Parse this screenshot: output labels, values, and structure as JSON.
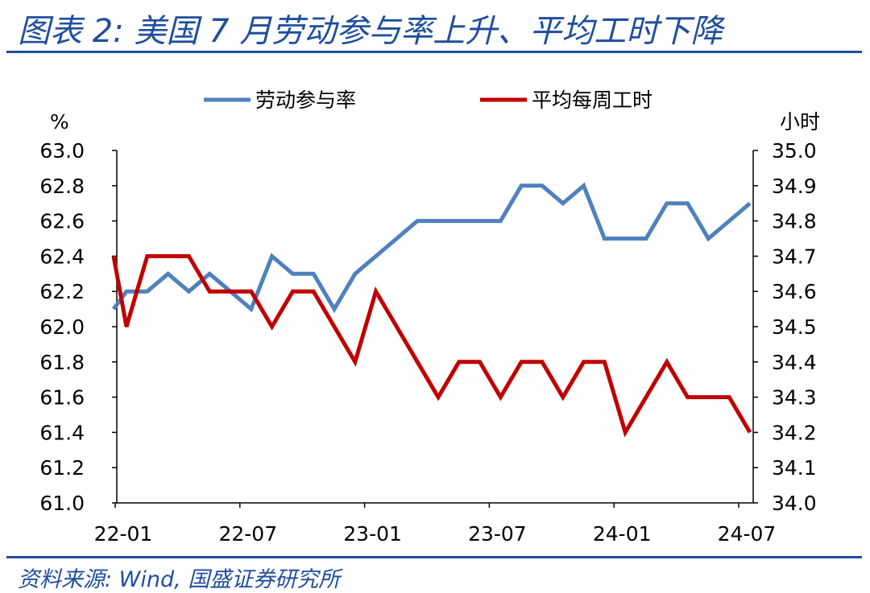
{
  "header": {
    "title": "图表 2:  美国 7 月劳动参与率上升、平均工时下降"
  },
  "footer": {
    "source": "资料来源:  Wind,  国盛证券研究所"
  },
  "chart_data": {
    "type": "line",
    "categories": [
      "22-01",
      "22-02",
      "22-03",
      "22-04",
      "22-05",
      "22-06",
      "22-07",
      "22-08",
      "22-09",
      "22-10",
      "22-11",
      "22-12",
      "23-01",
      "23-02",
      "23-03",
      "23-04",
      "23-05",
      "23-06",
      "23-07",
      "23-08",
      "23-09",
      "23-10",
      "23-11",
      "23-12",
      "24-01",
      "24-02",
      "24-03",
      "24-04",
      "24-05",
      "24-06",
      "24-07"
    ],
    "x_tick_labels": [
      "22-01",
      "22-07",
      "23-01",
      "23-07",
      "24-01",
      "24-07"
    ],
    "left_axis": {
      "unit": "%",
      "ylim": [
        61.0,
        63.0
      ],
      "ticks": [
        "61.0",
        "61.2",
        "61.4",
        "61.6",
        "61.8",
        "62.0",
        "62.2",
        "62.4",
        "62.6",
        "62.8",
        "63.0"
      ]
    },
    "right_axis": {
      "unit": "小时",
      "ylim": [
        34.0,
        35.0
      ],
      "ticks": [
        "34.0",
        "34.1",
        "34.2",
        "34.3",
        "34.4",
        "34.5",
        "34.6",
        "34.7",
        "34.8",
        "34.9",
        "35.0"
      ]
    },
    "series": [
      {
        "name": "劳动参与率",
        "axis": "left",
        "color": "#4f81bd",
        "start": {
          "x": "21-12",
          "y": 62.1
        },
        "values": [
          62.2,
          62.2,
          62.3,
          62.2,
          62.3,
          62.2,
          62.1,
          62.4,
          62.3,
          62.3,
          62.1,
          62.3,
          62.4,
          62.5,
          62.6,
          62.6,
          62.6,
          62.6,
          62.6,
          62.8,
          62.8,
          62.7,
          62.8,
          62.5,
          62.5,
          62.5,
          62.7,
          62.7,
          62.5,
          62.6,
          62.7
        ]
      },
      {
        "name": "平均每周工时",
        "axis": "right",
        "color": "#c00000",
        "start": {
          "x": "21-12",
          "y": 34.7
        },
        "values": [
          34.5,
          34.7,
          34.7,
          34.7,
          34.6,
          34.6,
          34.6,
          34.5,
          34.6,
          34.6,
          34.5,
          34.4,
          34.6,
          34.5,
          34.4,
          34.3,
          34.4,
          34.4,
          34.3,
          34.4,
          34.4,
          34.3,
          34.4,
          34.4,
          34.2,
          34.3,
          34.4,
          34.3,
          34.3,
          34.3,
          34.2
        ]
      }
    ],
    "legend": "top-center",
    "grid": false
  }
}
